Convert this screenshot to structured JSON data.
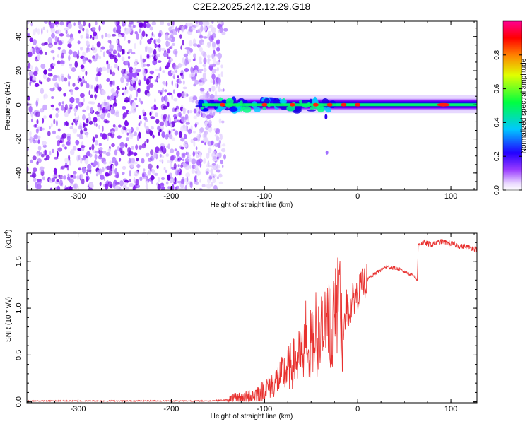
{
  "title": "C2E2.2025.242.12.29.G18",
  "chart_data": [
    {
      "type": "heatmap",
      "xlabel": "Height of straight line (km)",
      "ylabel": "Frequency (Hz)",
      "xlim": [
        -355,
        128
      ],
      "ylim": [
        -50,
        49
      ],
      "xticks": [
        -300,
        -200,
        -100,
        0,
        100
      ],
      "yticks": [
        -40,
        -20,
        0,
        20,
        40
      ],
      "colorbar": {
        "label": "Normalized spectral amplitude",
        "range": [
          0,
          1
        ],
        "ticks": [
          "0.0",
          "0.2",
          "0.4",
          "0.6",
          "0.8"
        ],
        "colors": [
          "#ffffff",
          "#8c00ff",
          "#0000ff",
          "#00e5ff",
          "#00ff00",
          "#ffff00",
          "#ff0000",
          "#ff0080"
        ]
      },
      "noise_region_x": [
        -355,
        -145
      ],
      "signal_band_x": [
        -170,
        128
      ],
      "signal_hot_spots_x": [
        -145,
        -100,
        -70,
        -45,
        -30,
        -15,
        0,
        92
      ]
    },
    {
      "type": "line",
      "xlabel": "Height of straight line (km)",
      "ylabel": "SNR (10 * v/v)",
      "y_multiplier": "(x10",
      "y_multiplier_exp": "4",
      "y_multiplier_close": ")",
      "xlim": [
        -355,
        128
      ],
      "ylim": [
        -0.01,
        1.8
      ],
      "xticks": [
        -300,
        -200,
        -100,
        0,
        100
      ],
      "yticks": [
        "0.0",
        "0.5",
        "1.0",
        "1.5"
      ],
      "series": [
        {
          "color": "#e8302e",
          "x": [
            -355,
            -300,
            -250,
            -200,
            -160,
            -140,
            -130,
            -120,
            -110,
            -100,
            -90,
            -80,
            -70,
            -60,
            -50,
            -40,
            -30,
            -25,
            -20,
            -15,
            -12,
            -10,
            -5,
            0,
            5,
            10,
            20,
            30,
            40,
            50,
            60,
            64,
            65,
            70,
            80,
            90,
            100,
            110,
            120,
            128
          ],
          "y": [
            0.01,
            0.01,
            0.01,
            0.01,
            0.01,
            0.02,
            0.03,
            0.05,
            0.08,
            0.13,
            0.2,
            0.3,
            0.4,
            0.5,
            0.6,
            0.7,
            0.85,
            0.9,
            1.0,
            0.75,
            1.05,
            0.95,
            1.1,
            1.15,
            1.25,
            1.3,
            1.38,
            1.44,
            1.43,
            1.39,
            1.35,
            1.3,
            1.68,
            1.7,
            1.68,
            1.71,
            1.69,
            1.66,
            1.65,
            1.63
          ]
        }
      ]
    }
  ]
}
